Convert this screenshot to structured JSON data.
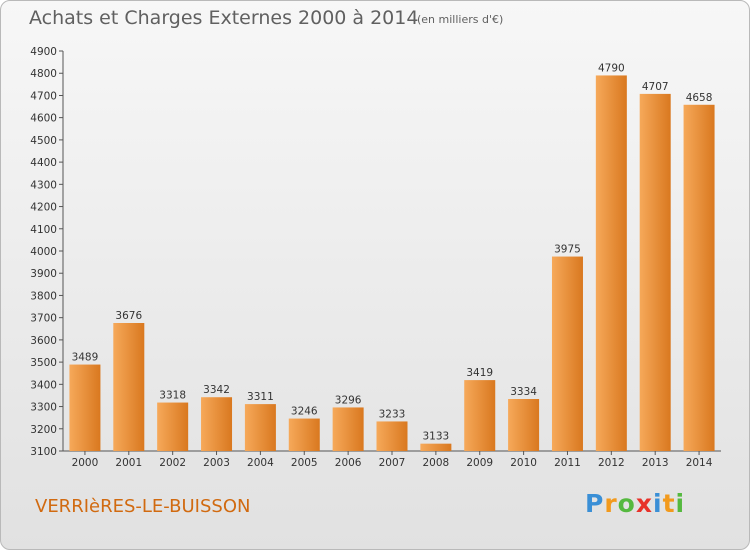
{
  "header": {
    "title": "Achats et Charges Externes 2000 à 2014",
    "unit": "(en milliers d'€)"
  },
  "footer": {
    "city": "VERRIèRES-LE-BUISSON",
    "logo_letters": [
      "P",
      "r",
      "o",
      "x",
      "i",
      "t",
      "i"
    ],
    "logo_colors": [
      "#3a8fd6",
      "#f29a1d",
      "#55b93f",
      "#e8322a",
      "#3a8fd6",
      "#f29a1d",
      "#55b93f"
    ]
  },
  "colors": {
    "bar_top": "#f6a95a",
    "bar_bottom": "#d9781f",
    "text": "#333333",
    "city": "#d16a10"
  },
  "chart_data": {
    "type": "bar",
    "title": "Achats et Charges Externes 2000 à 2014",
    "subtitle": "(en milliers d'€)",
    "categories": [
      "2000",
      "2001",
      "2002",
      "2003",
      "2004",
      "2005",
      "2006",
      "2007",
      "2008",
      "2009",
      "2010",
      "2011",
      "2012",
      "2013",
      "2014"
    ],
    "values": [
      3489,
      3676,
      3318,
      3342,
      3311,
      3246,
      3296,
      3233,
      3133,
      3419,
      3334,
      3975,
      4790,
      4707,
      4658
    ],
    "ylim": [
      3100,
      4900
    ],
    "yticks": [
      3100,
      3200,
      3300,
      3400,
      3500,
      3600,
      3700,
      3800,
      3900,
      4000,
      4100,
      4200,
      4300,
      4400,
      4500,
      4600,
      4700,
      4800,
      4900
    ],
    "grid": false,
    "xlabel": "",
    "ylabel": ""
  }
}
